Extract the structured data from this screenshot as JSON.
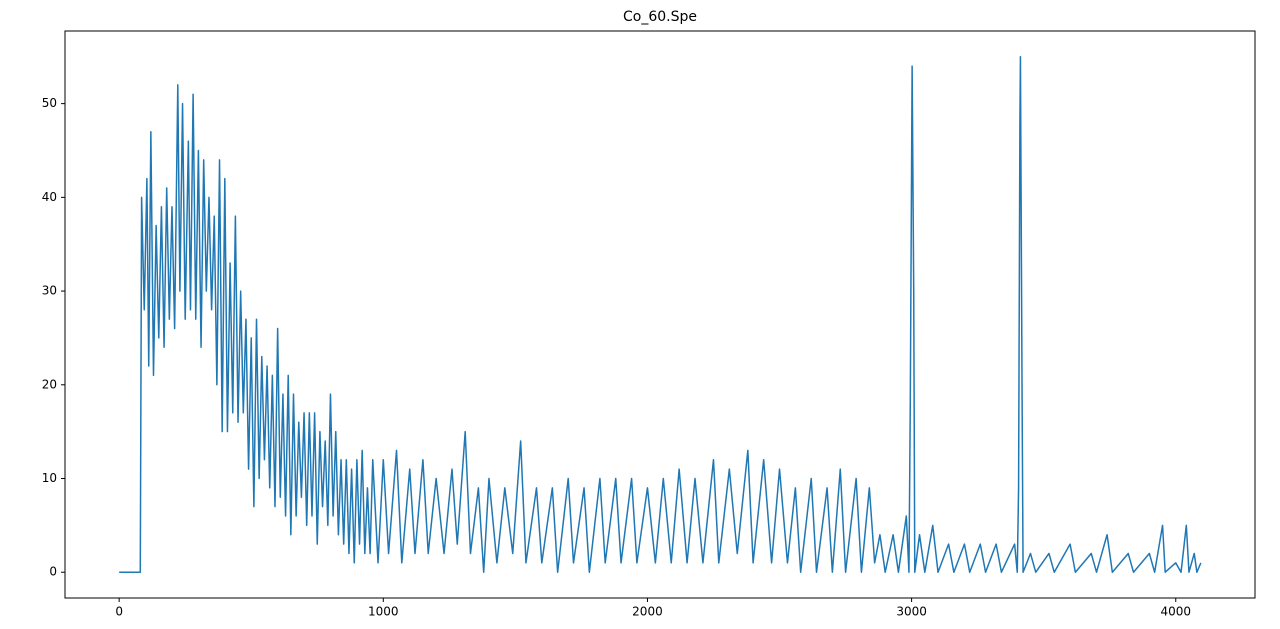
{
  "chart_data": {
    "type": "line",
    "title": "Co_60.Spe",
    "color": "#1f77b4",
    "grid": false,
    "xlim": [
      -205,
      4300
    ],
    "ylim": [
      -2.75,
      57.75
    ],
    "xticks": [
      0,
      1000,
      2000,
      3000,
      4000
    ],
    "yticks": [
      0,
      10,
      20,
      30,
      40,
      50
    ],
    "x": [
      0,
      80,
      85,
      95,
      105,
      112,
      120,
      130,
      140,
      150,
      160,
      170,
      180,
      190,
      200,
      210,
      222,
      230,
      240,
      250,
      262,
      270,
      280,
      290,
      300,
      310,
      320,
      330,
      340,
      350,
      360,
      370,
      380,
      390,
      400,
      410,
      420,
      430,
      440,
      450,
      460,
      470,
      480,
      490,
      500,
      510,
      520,
      530,
      540,
      550,
      560,
      570,
      580,
      590,
      600,
      610,
      620,
      630,
      640,
      650,
      660,
      670,
      680,
      690,
      700,
      710,
      720,
      730,
      740,
      750,
      760,
      770,
      780,
      790,
      800,
      810,
      820,
      830,
      840,
      850,
      860,
      870,
      880,
      890,
      900,
      910,
      920,
      930,
      940,
      950,
      960,
      980,
      1000,
      1020,
      1050,
      1070,
      1100,
      1120,
      1150,
      1170,
      1200,
      1230,
      1260,
      1280,
      1310,
      1330,
      1360,
      1380,
      1400,
      1430,
      1460,
      1490,
      1520,
      1540,
      1580,
      1600,
      1640,
      1660,
      1700,
      1720,
      1760,
      1780,
      1820,
      1840,
      1880,
      1900,
      1940,
      1960,
      2000,
      2030,
      2060,
      2090,
      2120,
      2150,
      2180,
      2210,
      2250,
      2270,
      2310,
      2340,
      2380,
      2400,
      2440,
      2470,
      2500,
      2530,
      2560,
      2580,
      2620,
      2640,
      2680,
      2700,
      2730,
      2750,
      2790,
      2810,
      2840,
      2860,
      2880,
      2900,
      2930,
      2950,
      2980,
      2990,
      2995,
      3002,
      3008,
      3012,
      3030,
      3050,
      3080,
      3100,
      3140,
      3160,
      3200,
      3220,
      3260,
      3280,
      3320,
      3340,
      3390,
      3400,
      3405,
      3410,
      3412,
      3418,
      3422,
      3450,
      3470,
      3520,
      3540,
      3600,
      3620,
      3680,
      3700,
      3740,
      3760,
      3820,
      3840,
      3900,
      3920,
      3950,
      3960,
      4000,
      4020,
      4040,
      4050,
      4070,
      4080,
      4095
    ],
    "values": [
      0,
      0,
      40,
      28,
      42,
      22,
      47,
      21,
      37,
      25,
      39,
      24,
      41,
      27,
      39,
      26,
      52,
      30,
      50,
      27,
      46,
      28,
      51,
      27,
      45,
      24,
      44,
      30,
      40,
      28,
      38,
      20,
      44,
      15,
      42,
      15,
      33,
      17,
      38,
      16,
      30,
      17,
      27,
      11,
      25,
      7,
      27,
      10,
      23,
      12,
      22,
      9,
      21,
      7,
      26,
      8,
      19,
      6,
      21,
      4,
      19,
      6,
      16,
      8,
      17,
      5,
      17,
      6,
      17,
      3,
      15,
      7,
      14,
      5,
      19,
      6,
      15,
      4,
      12,
      3,
      12,
      2,
      11,
      1,
      12,
      3,
      13,
      2,
      9,
      2,
      12,
      1,
      12,
      2,
      13,
      1,
      11,
      2,
      12,
      2,
      10,
      2,
      11,
      3,
      15,
      2,
      9,
      0,
      10,
      1,
      9,
      2,
      14,
      1,
      9,
      1,
      9,
      0,
      10,
      1,
      9,
      0,
      10,
      1,
      10,
      1,
      10,
      1,
      9,
      1,
      10,
      1,
      11,
      1,
      10,
      1,
      12,
      1,
      11,
      2,
      13,
      1,
      12,
      1,
      11,
      1,
      9,
      0,
      10,
      0,
      9,
      0,
      11,
      0,
      10,
      0,
      9,
      1,
      4,
      0,
      4,
      0,
      6,
      0,
      18,
      54,
      30,
      0,
      4,
      0,
      5,
      0,
      3,
      0,
      3,
      0,
      3,
      0,
      3,
      0,
      3,
      0,
      9,
      48,
      55,
      20,
      0,
      2,
      0,
      2,
      0,
      3,
      0,
      2,
      0,
      4,
      0,
      2,
      0,
      2,
      0,
      5,
      0,
      1,
      0,
      5,
      0,
      2,
      0,
      1
    ]
  }
}
